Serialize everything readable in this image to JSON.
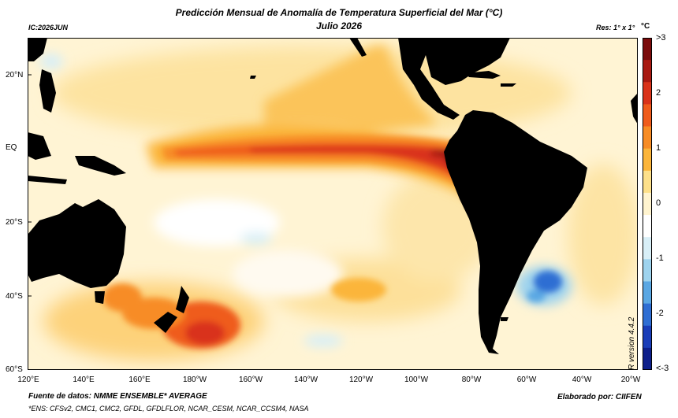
{
  "header": {
    "title": "Predicción Mensual de Anomalía de Temperatura Superficial del Mar (°C)",
    "subtitle": "Julio 2026",
    "ic": "IC:2026JUN",
    "resolution": "Res: 1° x 1°",
    "unit": "°C"
  },
  "map": {
    "lat_labels": [
      "20°N",
      "EQ",
      "20°S",
      "40°S",
      "60°S"
    ],
    "lon_labels": [
      "120°E",
      "140°E",
      "160°E",
      "180°W",
      "160°W",
      "140°W",
      "120°W",
      "100°W",
      "80°W",
      "60°W",
      "40°W",
      "20°W"
    ]
  },
  "colorbar": {
    "labels": [
      ">3",
      "2",
      "1",
      "0",
      "-1",
      "-2",
      "<-3"
    ],
    "colors": [
      "#7a0b0b",
      "#a81a12",
      "#d9331a",
      "#ef5c1c",
      "#f78c25",
      "#fbb53b",
      "#fde08a",
      "#fff4cf",
      "#ffffff",
      "#d8eff7",
      "#9ed3ee",
      "#5aa7e3",
      "#2f6ed3",
      "#1a3db8",
      "#0e1f8a"
    ],
    "land_color": "#000000"
  },
  "footer": {
    "source": "Fuente de datos: NMME ENSEMBLE* AVERAGE",
    "ensemble": "*ENS: CFSv2, CMC1, CMC2, GFDL, GFDLFLOR, NCAR_CESM, NCAR_CCSM4, NASA",
    "credit": "Elaborado por: CIIFEN",
    "version": "R version 4.4.2"
  }
}
